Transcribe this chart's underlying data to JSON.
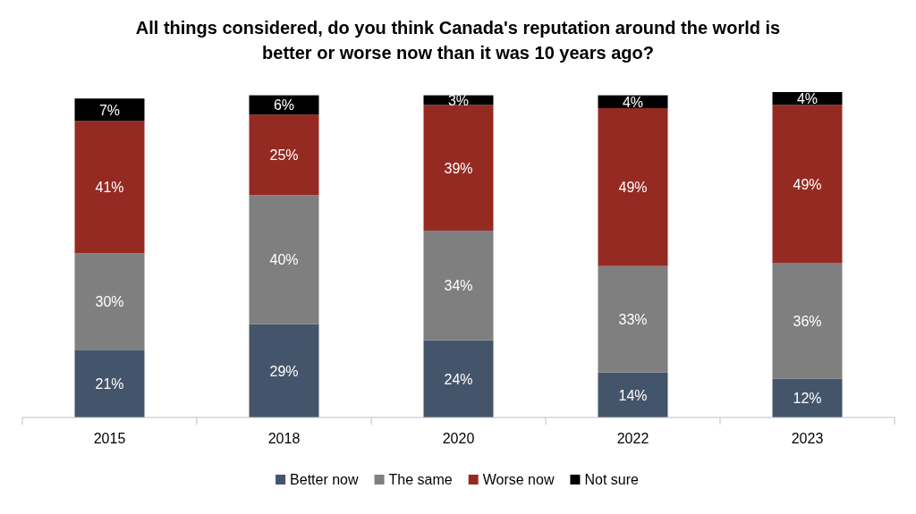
{
  "chart_data": {
    "type": "bar",
    "stacked": true,
    "title": "All things considered, do you think Canada's reputation around the world is better or worse now than it was 10 years ago?",
    "categories": [
      "2015",
      "2018",
      "2020",
      "2022",
      "2023"
    ],
    "series": [
      {
        "name": "Better now",
        "color": "#44546a",
        "values": [
          21,
          29,
          24,
          14,
          12
        ],
        "value_labels": [
          "21%",
          "29%",
          "24%",
          "14%",
          "12%"
        ]
      },
      {
        "name": "The same",
        "color": "#7f7f7f",
        "values": [
          30,
          40,
          34,
          33,
          36
        ],
        "value_labels": [
          "30%",
          "40%",
          "34%",
          "33%",
          "36%"
        ]
      },
      {
        "name": "Worse now",
        "color": "#952a22",
        "values": [
          41,
          25,
          39,
          49,
          49
        ],
        "value_labels": [
          "41%",
          "25%",
          "39%",
          "49%",
          "49%"
        ]
      },
      {
        "name": "Not sure",
        "color": "#000000",
        "values": [
          7,
          6,
          3,
          4,
          4
        ],
        "value_labels": [
          "7%",
          "6%",
          "3%",
          "4%",
          "4%"
        ]
      }
    ],
    "legend": "bottom",
    "tick_labels": "x"
  }
}
